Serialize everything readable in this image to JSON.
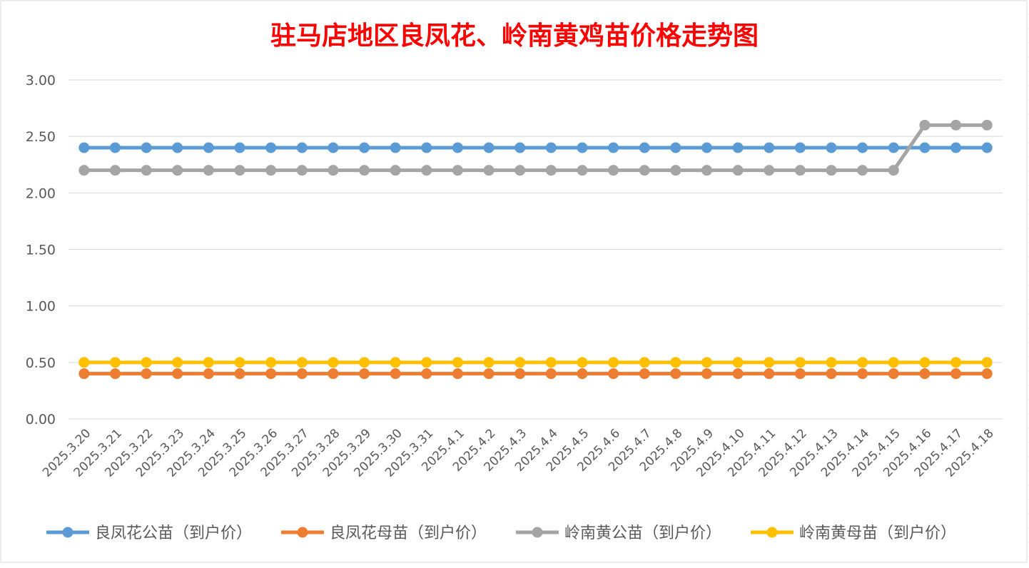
{
  "chart_data": {
    "type": "line",
    "title": "驻马店地区良凤花、岭南黄鸡苗价格走势图",
    "title_color": "#ff0000",
    "categories": [
      "2025.3.20",
      "2025.3.21",
      "2025.3.22",
      "2025.3.23",
      "2025.3.24",
      "2025.3.25",
      "2025.3.26",
      "2025.3.27",
      "2025.3.28",
      "2025.3.29",
      "2025.3.30",
      "2025.3.31",
      "2025.4.1",
      "2025.4.2",
      "2025.4.3",
      "2025.4.4",
      "2025.4.5",
      "2025.4.6",
      "2025.4.7",
      "2025.4.8",
      "2025.4.9",
      "2025.4.10",
      "2025.4.11",
      "2025.4.12",
      "2025.4.13",
      "2025.4.14",
      "2025.4.15",
      "2025.4.16",
      "2025.4.17",
      "2025.4.18"
    ],
    "ylim": [
      0,
      3
    ],
    "yticks": [
      "0.00",
      "0.50",
      "1.00",
      "1.50",
      "2.00",
      "2.50",
      "3.00"
    ],
    "grid": true,
    "legend_position": "bottom",
    "series": [
      {
        "name": "良凤花公苗（到户价）",
        "color": "#5b9bd5",
        "values": [
          2.4,
          2.4,
          2.4,
          2.4,
          2.4,
          2.4,
          2.4,
          2.4,
          2.4,
          2.4,
          2.4,
          2.4,
          2.4,
          2.4,
          2.4,
          2.4,
          2.4,
          2.4,
          2.4,
          2.4,
          2.4,
          2.4,
          2.4,
          2.4,
          2.4,
          2.4,
          2.4,
          2.4,
          2.4,
          2.4
        ]
      },
      {
        "name": "良凤花母苗（到户价）",
        "color": "#ed7d31",
        "values": [
          0.4,
          0.4,
          0.4,
          0.4,
          0.4,
          0.4,
          0.4,
          0.4,
          0.4,
          0.4,
          0.4,
          0.4,
          0.4,
          0.4,
          0.4,
          0.4,
          0.4,
          0.4,
          0.4,
          0.4,
          0.4,
          0.4,
          0.4,
          0.4,
          0.4,
          0.4,
          0.4,
          0.4,
          0.4,
          0.4
        ]
      },
      {
        "name": "岭南黄公苗（到户价）",
        "color": "#a5a5a5",
        "values": [
          2.2,
          2.2,
          2.2,
          2.2,
          2.2,
          2.2,
          2.2,
          2.2,
          2.2,
          2.2,
          2.2,
          2.2,
          2.2,
          2.2,
          2.2,
          2.2,
          2.2,
          2.2,
          2.2,
          2.2,
          2.2,
          2.2,
          2.2,
          2.2,
          2.2,
          2.2,
          2.2,
          2.6,
          2.6,
          2.6
        ]
      },
      {
        "name": "岭南黄母苗（到户价）",
        "color": "#ffc000",
        "values": [
          0.5,
          0.5,
          0.5,
          0.5,
          0.5,
          0.5,
          0.5,
          0.5,
          0.5,
          0.5,
          0.5,
          0.5,
          0.5,
          0.5,
          0.5,
          0.5,
          0.5,
          0.5,
          0.5,
          0.5,
          0.5,
          0.5,
          0.5,
          0.5,
          0.5,
          0.5,
          0.5,
          0.5,
          0.5,
          0.5
        ]
      }
    ]
  }
}
